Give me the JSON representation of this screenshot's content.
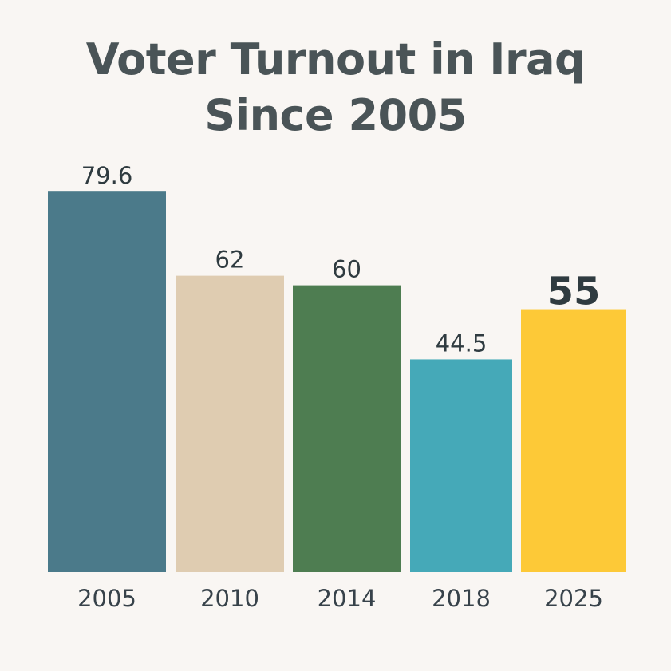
{
  "chart_data": {
    "type": "bar",
    "title_lines": [
      "Voter Turnout in Iraq",
      "Since 2005"
    ],
    "categories": [
      "2005",
      "2010",
      "2014",
      "2018",
      "2025"
    ],
    "values": [
      79.6,
      62,
      60,
      44.5,
      55
    ],
    "value_labels": [
      "79.6",
      "62",
      "60",
      "44.5",
      "55"
    ],
    "highlighted_index": 4,
    "colors": [
      "#4b7a8a",
      "#dfccb1",
      "#4e7d51",
      "#45a9b8",
      "#fdc937"
    ],
    "background": "#f9f6f3",
    "xlabel": "",
    "ylabel": "",
    "grid": false,
    "legend": "none"
  }
}
